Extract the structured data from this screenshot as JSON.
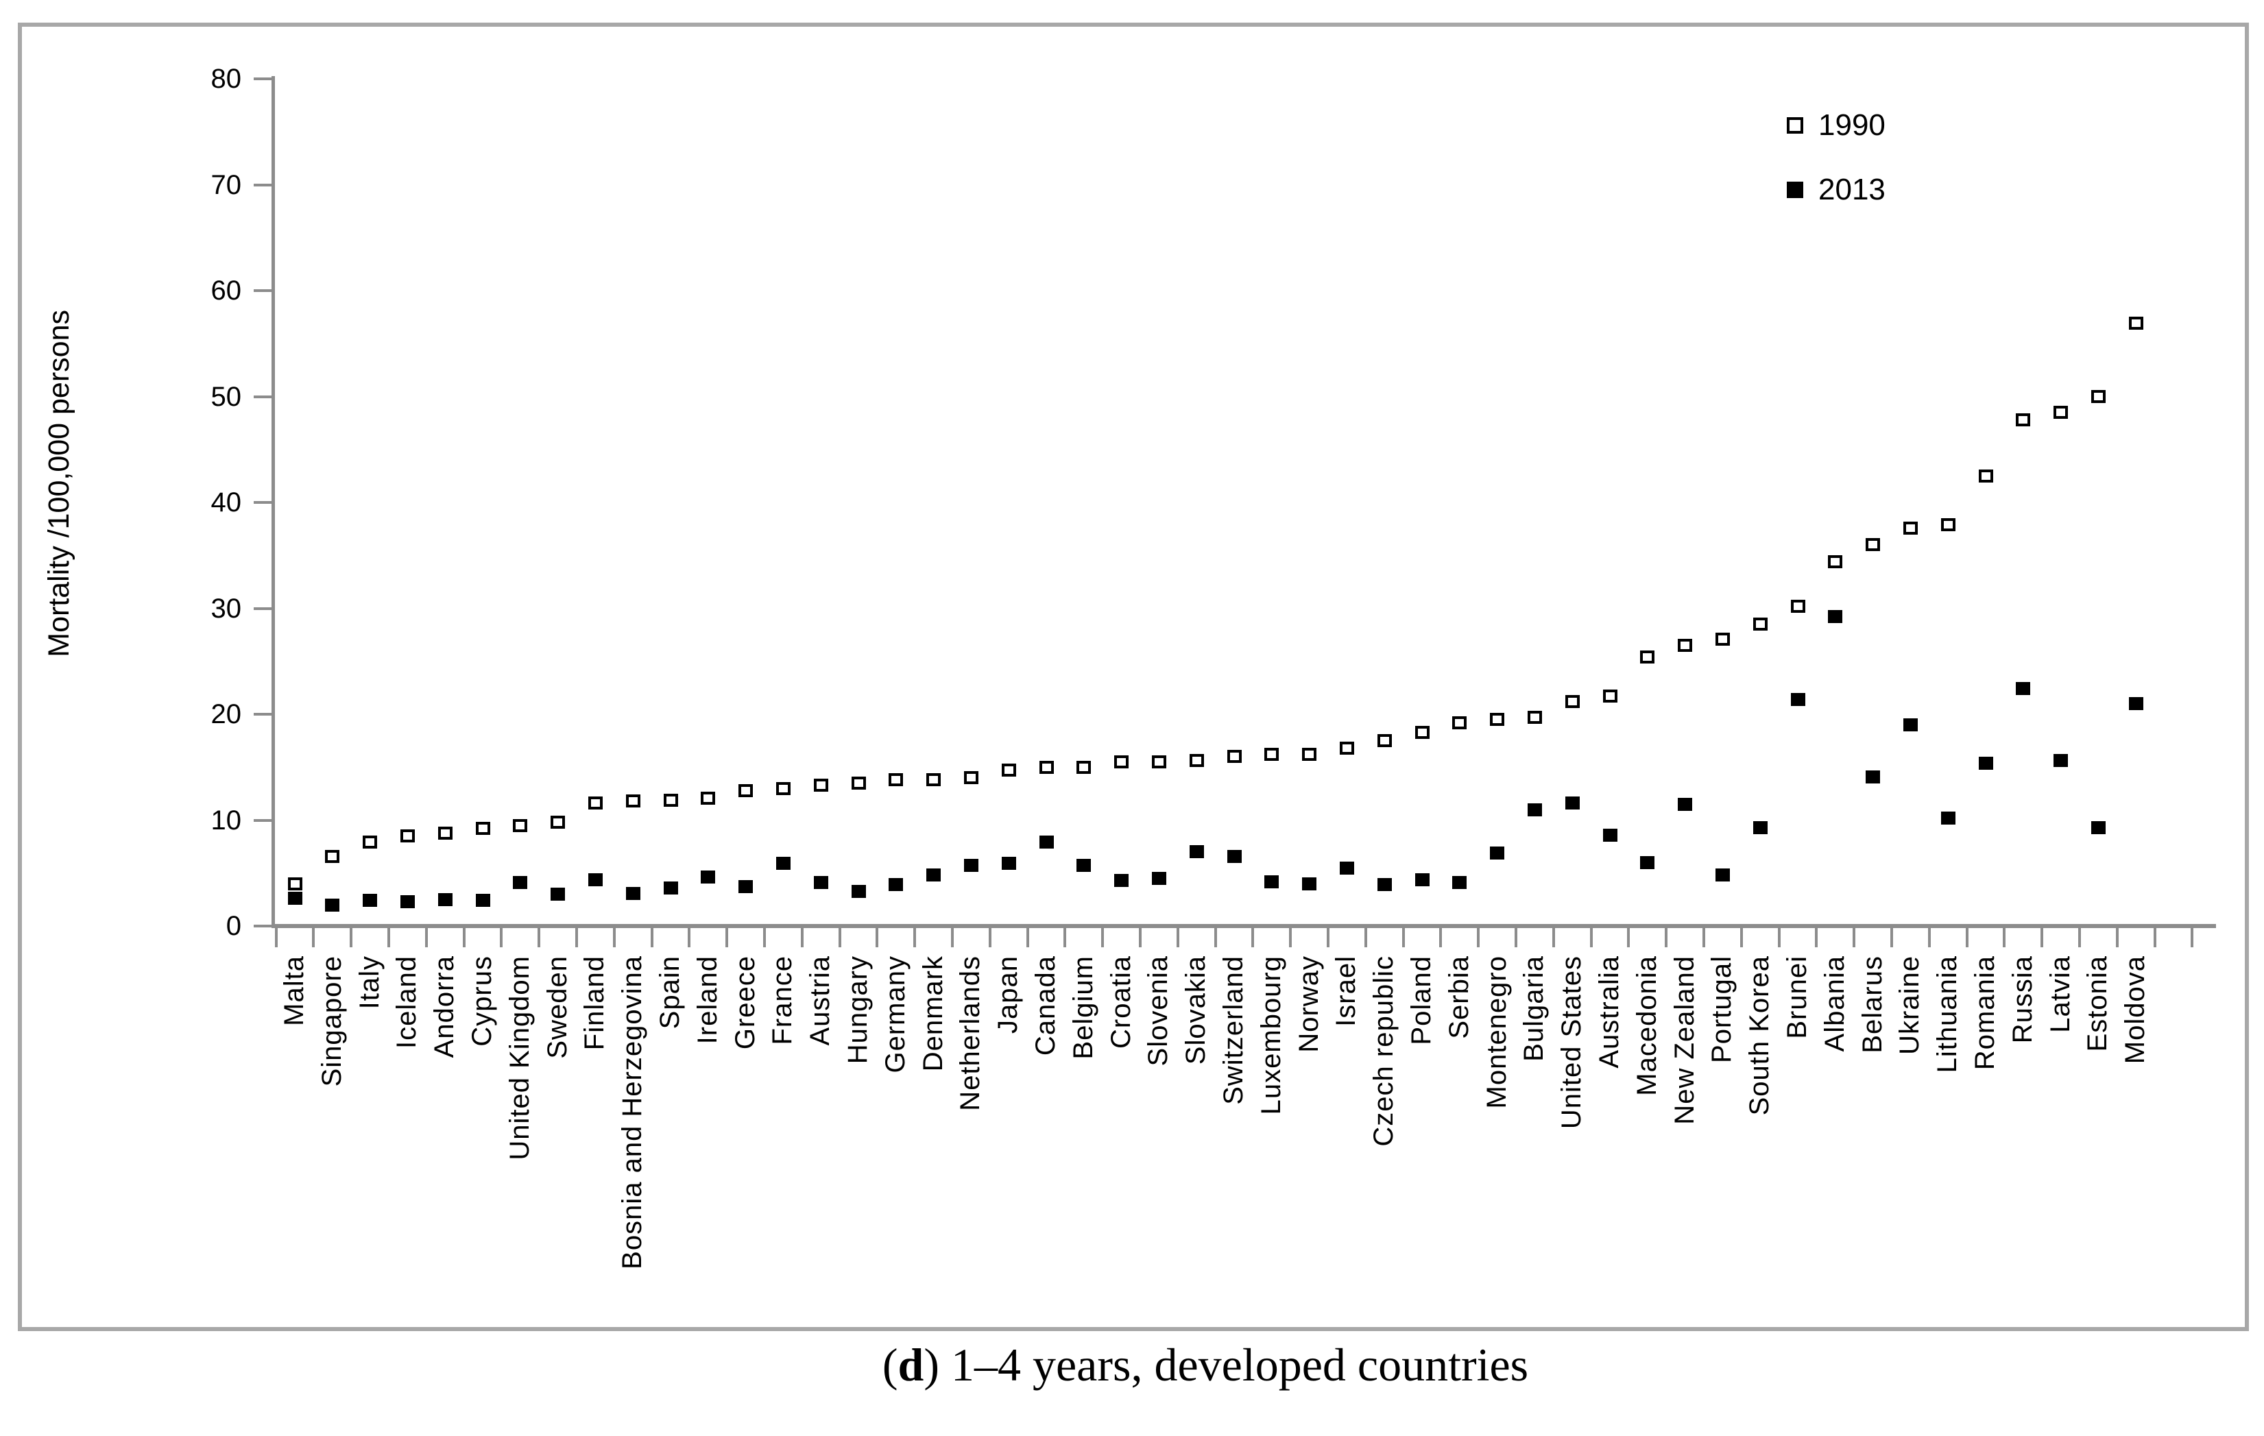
{
  "figure": {
    "caption": {
      "prefix": "(",
      "panel_letter": "d",
      "suffix": ") 1–4 years, developed countries"
    }
  },
  "legend": {
    "items": [
      {
        "label": "1990",
        "marker": "open-square"
      },
      {
        "label": "2013",
        "marker": "filled-square"
      }
    ]
  },
  "colors": {
    "axis": "#8c8c8c",
    "frame": "#a8a8a8",
    "marker": "#000000",
    "background": "#ffffff",
    "text": "#000000"
  },
  "chart_data": {
    "type": "scatter",
    "title": "",
    "xlabel": "",
    "ylabel": "Mortality /100,000 persons",
    "ylim": [
      0,
      80
    ],
    "yticks": [
      0,
      10,
      20,
      30,
      40,
      50,
      60,
      70,
      80
    ],
    "grid": false,
    "legend_position": "top-right",
    "categories": [
      "Malta",
      "Singapore",
      "Italy",
      "Iceland",
      "Andorra",
      "Cyprus",
      "United Kingdom",
      "Sweden",
      "Finland",
      "Bosnia and Herzegovina",
      "Spain",
      "Ireland",
      "Greece",
      "France",
      "Austria",
      "Hungary",
      "Germany",
      "Denmark",
      "Netherlands",
      "Japan",
      "Canada",
      "Belgium",
      "Croatia",
      "Slovenia",
      "Slovakia",
      "Switzerland",
      "Luxembourg",
      "Norway",
      "Israel",
      "Czech republic",
      "Poland",
      "Serbia",
      "Montenegro",
      "Bulgaria",
      "United States",
      "Australia",
      "Macedonia",
      "New Zealand",
      "Portugal",
      "South Korea",
      "Brunei",
      "Albania",
      "Belarus",
      "Ukraine",
      "Lithuania",
      "Romania",
      "Russia",
      "Latvia",
      "Estonia",
      "Moldova"
    ],
    "series": [
      {
        "name": "1990",
        "marker": "open-square",
        "values": [
          4.0,
          6.6,
          7.9,
          8.5,
          8.8,
          9.2,
          9.5,
          9.8,
          11.6,
          11.8,
          11.9,
          12.1,
          12.8,
          13.0,
          13.3,
          13.5,
          13.8,
          13.8,
          14.0,
          14.7,
          15.0,
          15.0,
          15.5,
          15.5,
          15.6,
          16.0,
          16.2,
          16.2,
          16.8,
          17.5,
          18.3,
          19.2,
          19.5,
          19.7,
          21.2,
          21.7,
          25.4,
          26.5,
          27.1,
          28.5,
          30.2,
          34.4,
          36.0,
          37.6,
          37.9,
          42.5,
          47.8,
          48.5,
          50.0,
          56.9
        ]
      },
      {
        "name": "2013",
        "marker": "filled-square",
        "values": [
          2.6,
          2.0,
          2.4,
          2.3,
          2.5,
          2.4,
          4.1,
          3.0,
          4.4,
          3.1,
          3.6,
          4.6,
          3.7,
          5.9,
          4.1,
          3.3,
          3.9,
          4.8,
          5.7,
          5.9,
          7.9,
          5.7,
          4.3,
          4.5,
          7.0,
          6.6,
          4.2,
          4.0,
          5.5,
          3.9,
          4.4,
          4.1,
          6.9,
          11.0,
          11.6,
          8.6,
          6.0,
          11.5,
          4.8,
          9.3,
          21.4,
          29.2,
          14.1,
          19.0,
          10.2,
          15.4,
          22.4,
          15.6,
          9.3,
          21.0
        ]
      }
    ]
  }
}
